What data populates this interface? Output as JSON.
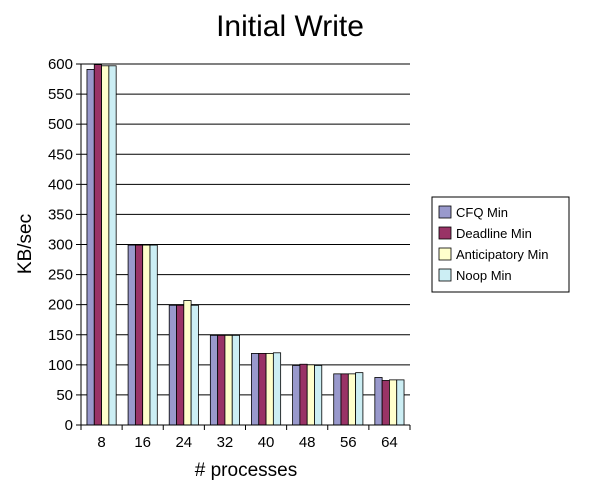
{
  "chart_data": {
    "type": "bar",
    "title": "Initial Write",
    "xlabel": "# processes",
    "ylabel": "KB/sec",
    "categories": [
      "8",
      "16",
      "24",
      "32",
      "40",
      "48",
      "56",
      "64"
    ],
    "ylim": [
      0,
      600
    ],
    "yticks": [
      "0",
      "50",
      "100",
      "150",
      "200",
      "250",
      "300",
      "350",
      "400",
      "450",
      "500",
      "550",
      "600"
    ],
    "grid": true,
    "legend_position": "right",
    "series": [
      {
        "name": "CFQ Min",
        "color": "#9999CC",
        "values": [
          591,
          299,
          199,
          149,
          119,
          99,
          85,
          79
        ]
      },
      {
        "name": "Deadline Min",
        "color": "#993366",
        "values": [
          599,
          299,
          199,
          149,
          119,
          101,
          85,
          74
        ]
      },
      {
        "name": "Anticipatory Min",
        "color": "#FFFFCC",
        "values": [
          597,
          299,
          207,
          149,
          119,
          100,
          85,
          75
        ]
      },
      {
        "name": "Noop Min",
        "color": "#CCEEF4",
        "values": [
          597,
          299,
          199,
          149,
          120,
          99,
          87,
          75
        ]
      }
    ]
  }
}
